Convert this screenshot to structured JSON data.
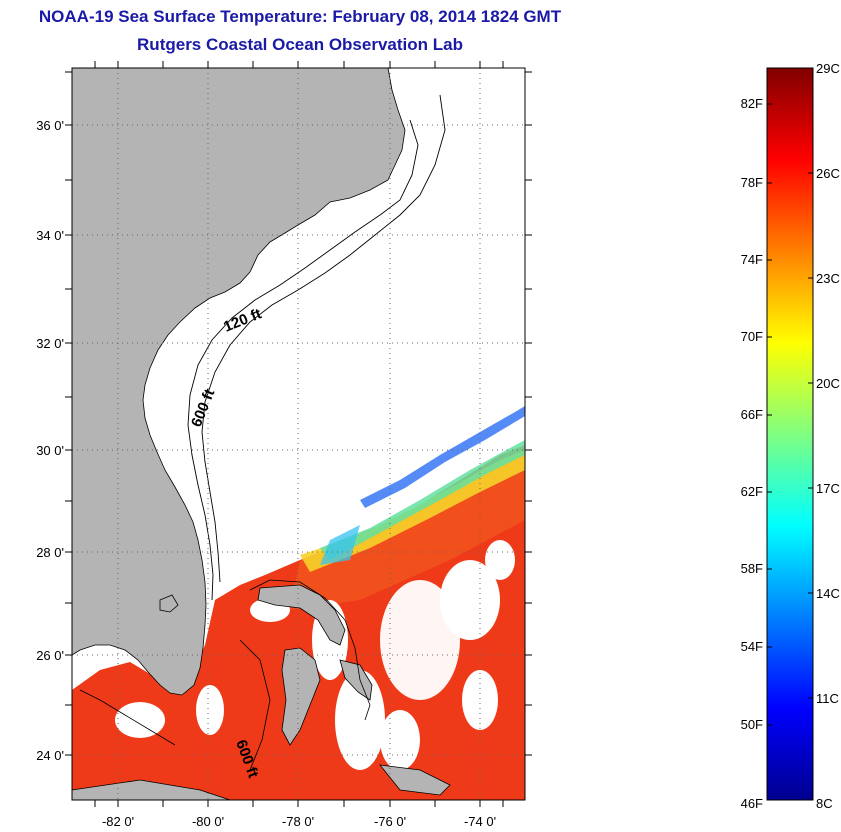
{
  "title": "NOAA-19 Sea Surface Temperature:  February 08, 2014 1824 GMT",
  "subtitle": "Rutgers Coastal Ocean Observation Lab",
  "map": {
    "lon_range": [
      -83,
      -73
    ],
    "lat_range": [
      23,
      37
    ],
    "lon_ticks": [
      "-82 0'",
      "-80 0'",
      "-78 0'",
      "-76 0'",
      "-74 0'"
    ],
    "lat_ticks": [
      "36 0'",
      "34 0'",
      "32 0'",
      "30 0'",
      "28 0'",
      "26 0'",
      "24 0'"
    ],
    "isobath_labels": [
      "120 ft",
      "600 ft",
      "600 ft"
    ],
    "colors": {
      "land": "#b4b4b4",
      "cloud": "#ffffff",
      "warm_water": "#f03a16"
    }
  },
  "colorbar": {
    "fahrenheit_labels": [
      "82F",
      "78F",
      "74F",
      "70F",
      "66F",
      "62F",
      "58F",
      "54F",
      "50F",
      "46F"
    ],
    "celsius_labels": [
      "29C",
      "26C",
      "23C",
      "20C",
      "17C",
      "14C",
      "11C",
      "8C"
    ],
    "range_celsius": [
      8,
      29
    ],
    "colormap": "jet"
  }
}
